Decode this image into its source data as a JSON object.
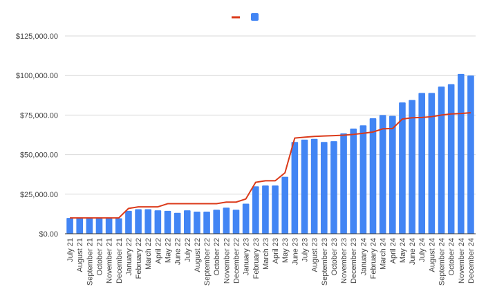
{
  "colors": {
    "bar": "#4285f4",
    "line": "#db3a1a",
    "grid": "#d9d9d9",
    "axis": "#333333",
    "text": "#444444"
  },
  "chart_data": {
    "type": "bar",
    "categories": [
      "July 21",
      "August 21",
      "September 21",
      "October 21",
      "November 21",
      "December 21",
      "January 22",
      "February 22",
      "March 22",
      "April 22",
      "May 22",
      "June 22",
      "July 22",
      "August 22",
      "September 22",
      "October 22",
      "November 22",
      "December 22",
      "January 23",
      "February 23",
      "March 23",
      "April 23",
      "May 23",
      "June 23",
      "July 23",
      "August 23",
      "September 23",
      "October 23",
      "November 23",
      "December 23",
      "January 24",
      "February 24",
      "March 24",
      "April 24",
      "May 24",
      "June 24",
      "July 24",
      "August 24",
      "September 24",
      "October 24",
      "November 24",
      "December 24"
    ],
    "series": [
      {
        "type": "bar",
        "color": "#4285f4",
        "values": [
          10000,
          10000,
          9800,
          9800,
          9800,
          9800,
          14500,
          15500,
          15500,
          14800,
          14500,
          13200,
          14800,
          14000,
          14000,
          15200,
          16500,
          15200,
          19000,
          30000,
          30500,
          30500,
          36000,
          58000,
          59500,
          60000,
          58000,
          58500,
          63500,
          66500,
          68500,
          73000,
          75000,
          74500,
          83000,
          84500,
          89000,
          89000,
          93000,
          94500,
          101000,
          100000
        ]
      },
      {
        "type": "line",
        "color": "#db3a1a",
        "values": [
          10000,
          10000,
          10000,
          10000,
          10000,
          10000,
          16000,
          17000,
          17000,
          17000,
          19000,
          19000,
          19000,
          19000,
          19000,
          19000,
          20000,
          20000,
          22000,
          32500,
          33500,
          33500,
          38500,
          60500,
          61000,
          61500,
          61800,
          62000,
          62300,
          62800,
          63500,
          64300,
          66300,
          66500,
          72500,
          73300,
          73500,
          74000,
          75000,
          75700,
          76000,
          76500
        ]
      }
    ],
    "yticks": [
      "$0.00",
      "$25,000.00",
      "$50,000.00",
      "$75,000.00",
      "$100,000.00",
      "$125,000.00"
    ],
    "ylim": [
      0,
      125000
    ],
    "grid": true,
    "legend": "top-center"
  }
}
